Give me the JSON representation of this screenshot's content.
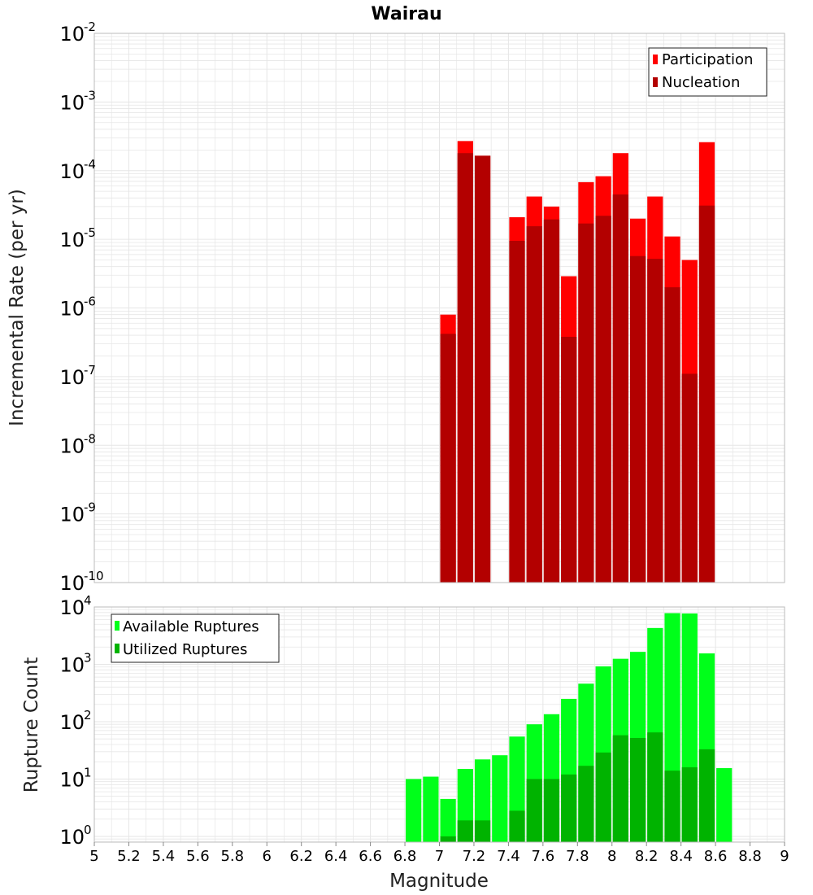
{
  "colors": {
    "participation": "#ff0000",
    "nucleation": "#b30000",
    "available": "#00ff1a",
    "utilized": "#00b300",
    "grid": "#e6e6e6",
    "frame": "#bbbbbb"
  },
  "chart_data": [
    {
      "name": "upper",
      "type": "bar",
      "title": "Wairau",
      "xlabel": "",
      "ylabel": "Incremental Rate (per yr)",
      "scale": "log",
      "xlim": [
        5,
        9
      ],
      "ylim_exp": [
        -10,
        -2
      ],
      "y_ticks": [
        {
          "base": "10",
          "exp": "-2"
        },
        {
          "base": "10",
          "exp": "-3"
        },
        {
          "base": "10",
          "exp": "-4"
        },
        {
          "base": "10",
          "exp": "-5"
        },
        {
          "base": "10",
          "exp": "-6"
        },
        {
          "base": "10",
          "exp": "-7"
        },
        {
          "base": "10",
          "exp": "-8"
        },
        {
          "base": "10",
          "exp": "-9"
        },
        {
          "base": "10",
          "exp": "-10"
        }
      ],
      "bin_width": 0.1,
      "legend": [
        "Participation",
        "Nucleation"
      ],
      "legend_position": "top-right",
      "series": [
        {
          "name": "Participation",
          "points": [
            {
              "x": 7.05,
              "y": 8e-07
            },
            {
              "x": 7.15,
              "y": 0.00027
            },
            {
              "x": 7.25,
              "y": 0.000165
            },
            {
              "x": 7.45,
              "y": 2.1e-05
            },
            {
              "x": 7.55,
              "y": 4.2e-05
            },
            {
              "x": 7.65,
              "y": 3e-05
            },
            {
              "x": 7.75,
              "y": 2.9e-06
            },
            {
              "x": 7.85,
              "y": 6.8e-05
            },
            {
              "x": 7.95,
              "y": 8.3e-05
            },
            {
              "x": 8.05,
              "y": 0.00018
            },
            {
              "x": 8.15,
              "y": 2e-05
            },
            {
              "x": 8.25,
              "y": 4.2e-05
            },
            {
              "x": 8.35,
              "y": 1.1e-05
            },
            {
              "x": 8.45,
              "y": 5e-06
            },
            {
              "x": 8.55,
              "y": 0.00026
            }
          ]
        },
        {
          "name": "Nucleation",
          "points": [
            {
              "x": 7.05,
              "y": 4.2e-07
            },
            {
              "x": 7.15,
              "y": 0.00018
            },
            {
              "x": 7.25,
              "y": 0.000165
            },
            {
              "x": 7.45,
              "y": 9.5e-06
            },
            {
              "x": 7.55,
              "y": 1.55e-05
            },
            {
              "x": 7.65,
              "y": 1.95e-05
            },
            {
              "x": 7.75,
              "y": 3.8e-07
            },
            {
              "x": 7.85,
              "y": 1.7e-05
            },
            {
              "x": 7.95,
              "y": 2.2e-05
            },
            {
              "x": 8.05,
              "y": 4.5e-05
            },
            {
              "x": 8.15,
              "y": 5.7e-06
            },
            {
              "x": 8.25,
              "y": 5.2e-06
            },
            {
              "x": 8.35,
              "y": 2e-06
            },
            {
              "x": 8.45,
              "y": 1.1e-07
            },
            {
              "x": 8.55,
              "y": 3.1e-05
            }
          ]
        }
      ]
    },
    {
      "name": "lower",
      "type": "bar",
      "title": "",
      "xlabel": "Magnitude",
      "ylabel": "Rupture Count",
      "scale": "log",
      "xlim": [
        5,
        9
      ],
      "ylim_exp": [
        -0.1,
        4
      ],
      "y_ticks": [
        {
          "base": "10",
          "exp": "4"
        },
        {
          "base": "10",
          "exp": "3"
        },
        {
          "base": "10",
          "exp": "2"
        },
        {
          "base": "10",
          "exp": "1"
        },
        {
          "base": "10",
          "exp": "0"
        }
      ],
      "x_ticks": [
        "5",
        "5.2",
        "5.4",
        "5.6",
        "5.8",
        "6",
        "6.2",
        "6.4",
        "6.6",
        "6.8",
        "7",
        "7.2",
        "7.4",
        "7.6",
        "7.8",
        "8",
        "8.2",
        "8.4",
        "8.6",
        "8.8",
        "9"
      ],
      "bin_width": 0.1,
      "legend": [
        "Available Ruptures",
        "Utilized Ruptures"
      ],
      "legend_position": "top-left",
      "series": [
        {
          "name": "Available Ruptures",
          "points": [
            {
              "x": 6.85,
              "y": 10
            },
            {
              "x": 6.95,
              "y": 11
            },
            {
              "x": 7.05,
              "y": 4.5
            },
            {
              "x": 7.15,
              "y": 15
            },
            {
              "x": 7.25,
              "y": 22
            },
            {
              "x": 7.35,
              "y": 26
            },
            {
              "x": 7.45,
              "y": 55
            },
            {
              "x": 7.55,
              "y": 90
            },
            {
              "x": 7.65,
              "y": 135
            },
            {
              "x": 7.75,
              "y": 250
            },
            {
              "x": 7.85,
              "y": 460
            },
            {
              "x": 7.95,
              "y": 920
            },
            {
              "x": 8.05,
              "y": 1250
            },
            {
              "x": 8.15,
              "y": 1650
            },
            {
              "x": 8.25,
              "y": 4300
            },
            {
              "x": 8.35,
              "y": 7800
            },
            {
              "x": 8.45,
              "y": 7700
            },
            {
              "x": 8.55,
              "y": 1550
            },
            {
              "x": 8.65,
              "y": 15.5
            }
          ]
        },
        {
          "name": "Utilized Ruptures",
          "points": [
            {
              "x": 7.05,
              "y": 1
            },
            {
              "x": 7.15,
              "y": 1.9
            },
            {
              "x": 7.25,
              "y": 1.9
            },
            {
              "x": 7.45,
              "y": 2.8
            },
            {
              "x": 7.55,
              "y": 10
            },
            {
              "x": 7.65,
              "y": 10
            },
            {
              "x": 7.75,
              "y": 12
            },
            {
              "x": 7.85,
              "y": 17
            },
            {
              "x": 7.95,
              "y": 29
            },
            {
              "x": 8.05,
              "y": 58
            },
            {
              "x": 8.15,
              "y": 52
            },
            {
              "x": 8.25,
              "y": 65
            },
            {
              "x": 8.35,
              "y": 14
            },
            {
              "x": 8.45,
              "y": 16
            },
            {
              "x": 8.55,
              "y": 33
            }
          ]
        }
      ]
    }
  ]
}
